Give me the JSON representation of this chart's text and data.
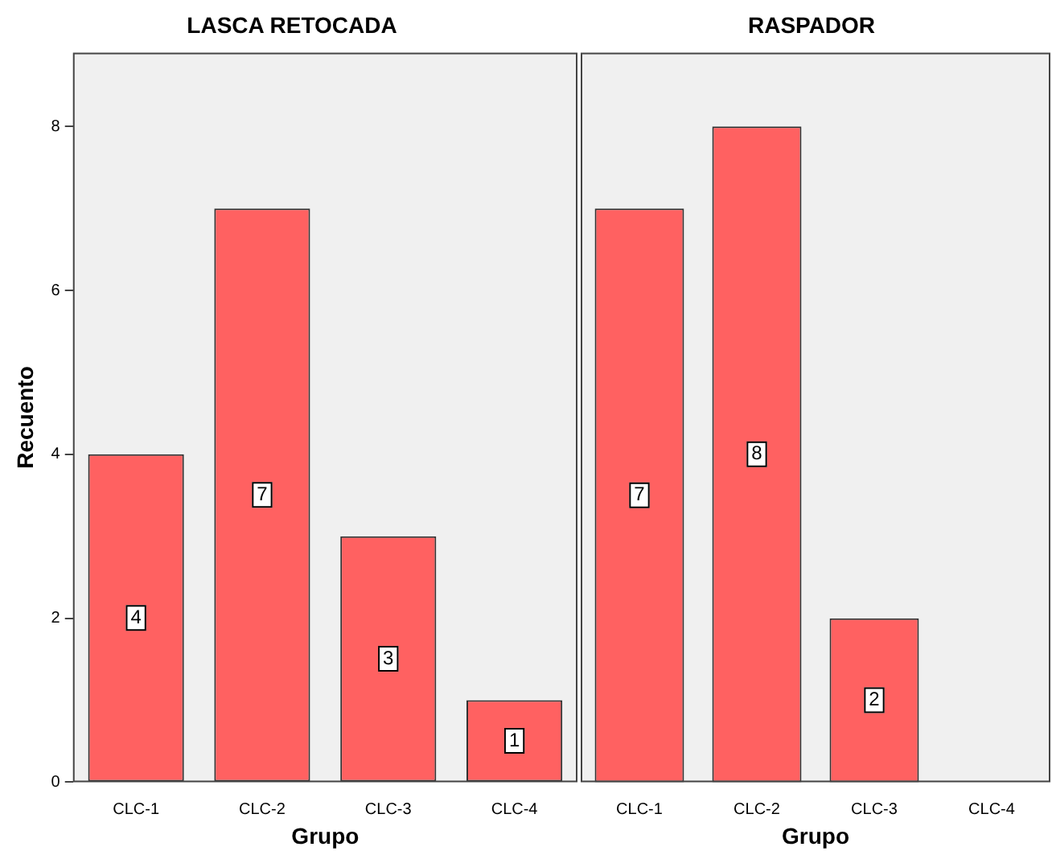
{
  "chart_data": [
    {
      "type": "bar",
      "title": "LASCA RETOCADA",
      "xlabel": "Grupo",
      "ylabel": "Recuento",
      "categories": [
        "CLC-1",
        "CLC-2",
        "CLC-3",
        "CLC-4"
      ],
      "values": [
        4,
        7,
        3,
        1
      ],
      "color": "#ff6161",
      "ylim": [
        0,
        8.9
      ],
      "yticks": [
        0,
        2,
        4,
        6,
        8
      ],
      "data_labels": true
    },
    {
      "type": "bar",
      "title": "RASPADOR",
      "xlabel": "Grupo",
      "categories": [
        "CLC-1",
        "CLC-2",
        "CLC-3",
        "CLC-4"
      ],
      "values": [
        7,
        8,
        2,
        null
      ],
      "color": "#ff6161",
      "ylim": [
        0,
        8.9
      ],
      "yticks": [
        0,
        2,
        4,
        6,
        8
      ],
      "data_labels": true,
      "tick_labels": "x"
    }
  ]
}
